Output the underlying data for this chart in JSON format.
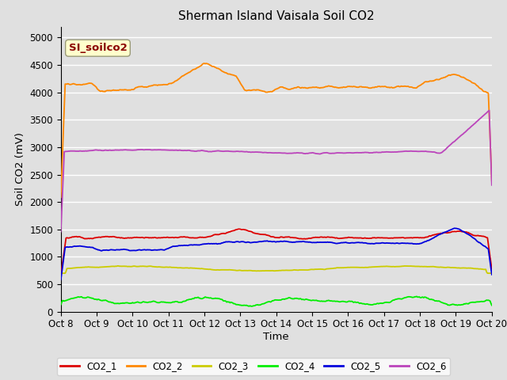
{
  "title": "Sherman Island Vaisala Soil CO2",
  "xlabel": "Time",
  "ylabel": "Soil CO2 (mV)",
  "watermark": "SI_soilco2",
  "x_tick_labels": [
    "Oct 8",
    "Oct 9",
    "Oct 10",
    "Oct 11",
    "Oct 12",
    "Oct 13",
    "Oct 14",
    "Oct 15",
    "Oct 16",
    "Oct 17",
    "Oct 18",
    "Oct 19",
    "Oct 20"
  ],
  "ylim": [
    0,
    5200
  ],
  "yticks": [
    0,
    500,
    1000,
    1500,
    2000,
    2500,
    3000,
    3500,
    4000,
    4500,
    5000
  ],
  "series_colors": {
    "CO2_1": "#dd0000",
    "CO2_2": "#ff8800",
    "CO2_3": "#cccc00",
    "CO2_4": "#00ee00",
    "CO2_5": "#0000dd",
    "CO2_6": "#bb44bb"
  },
  "bg_color": "#e0e0e0",
  "grid_color": "#ffffff",
  "n_points": 500
}
